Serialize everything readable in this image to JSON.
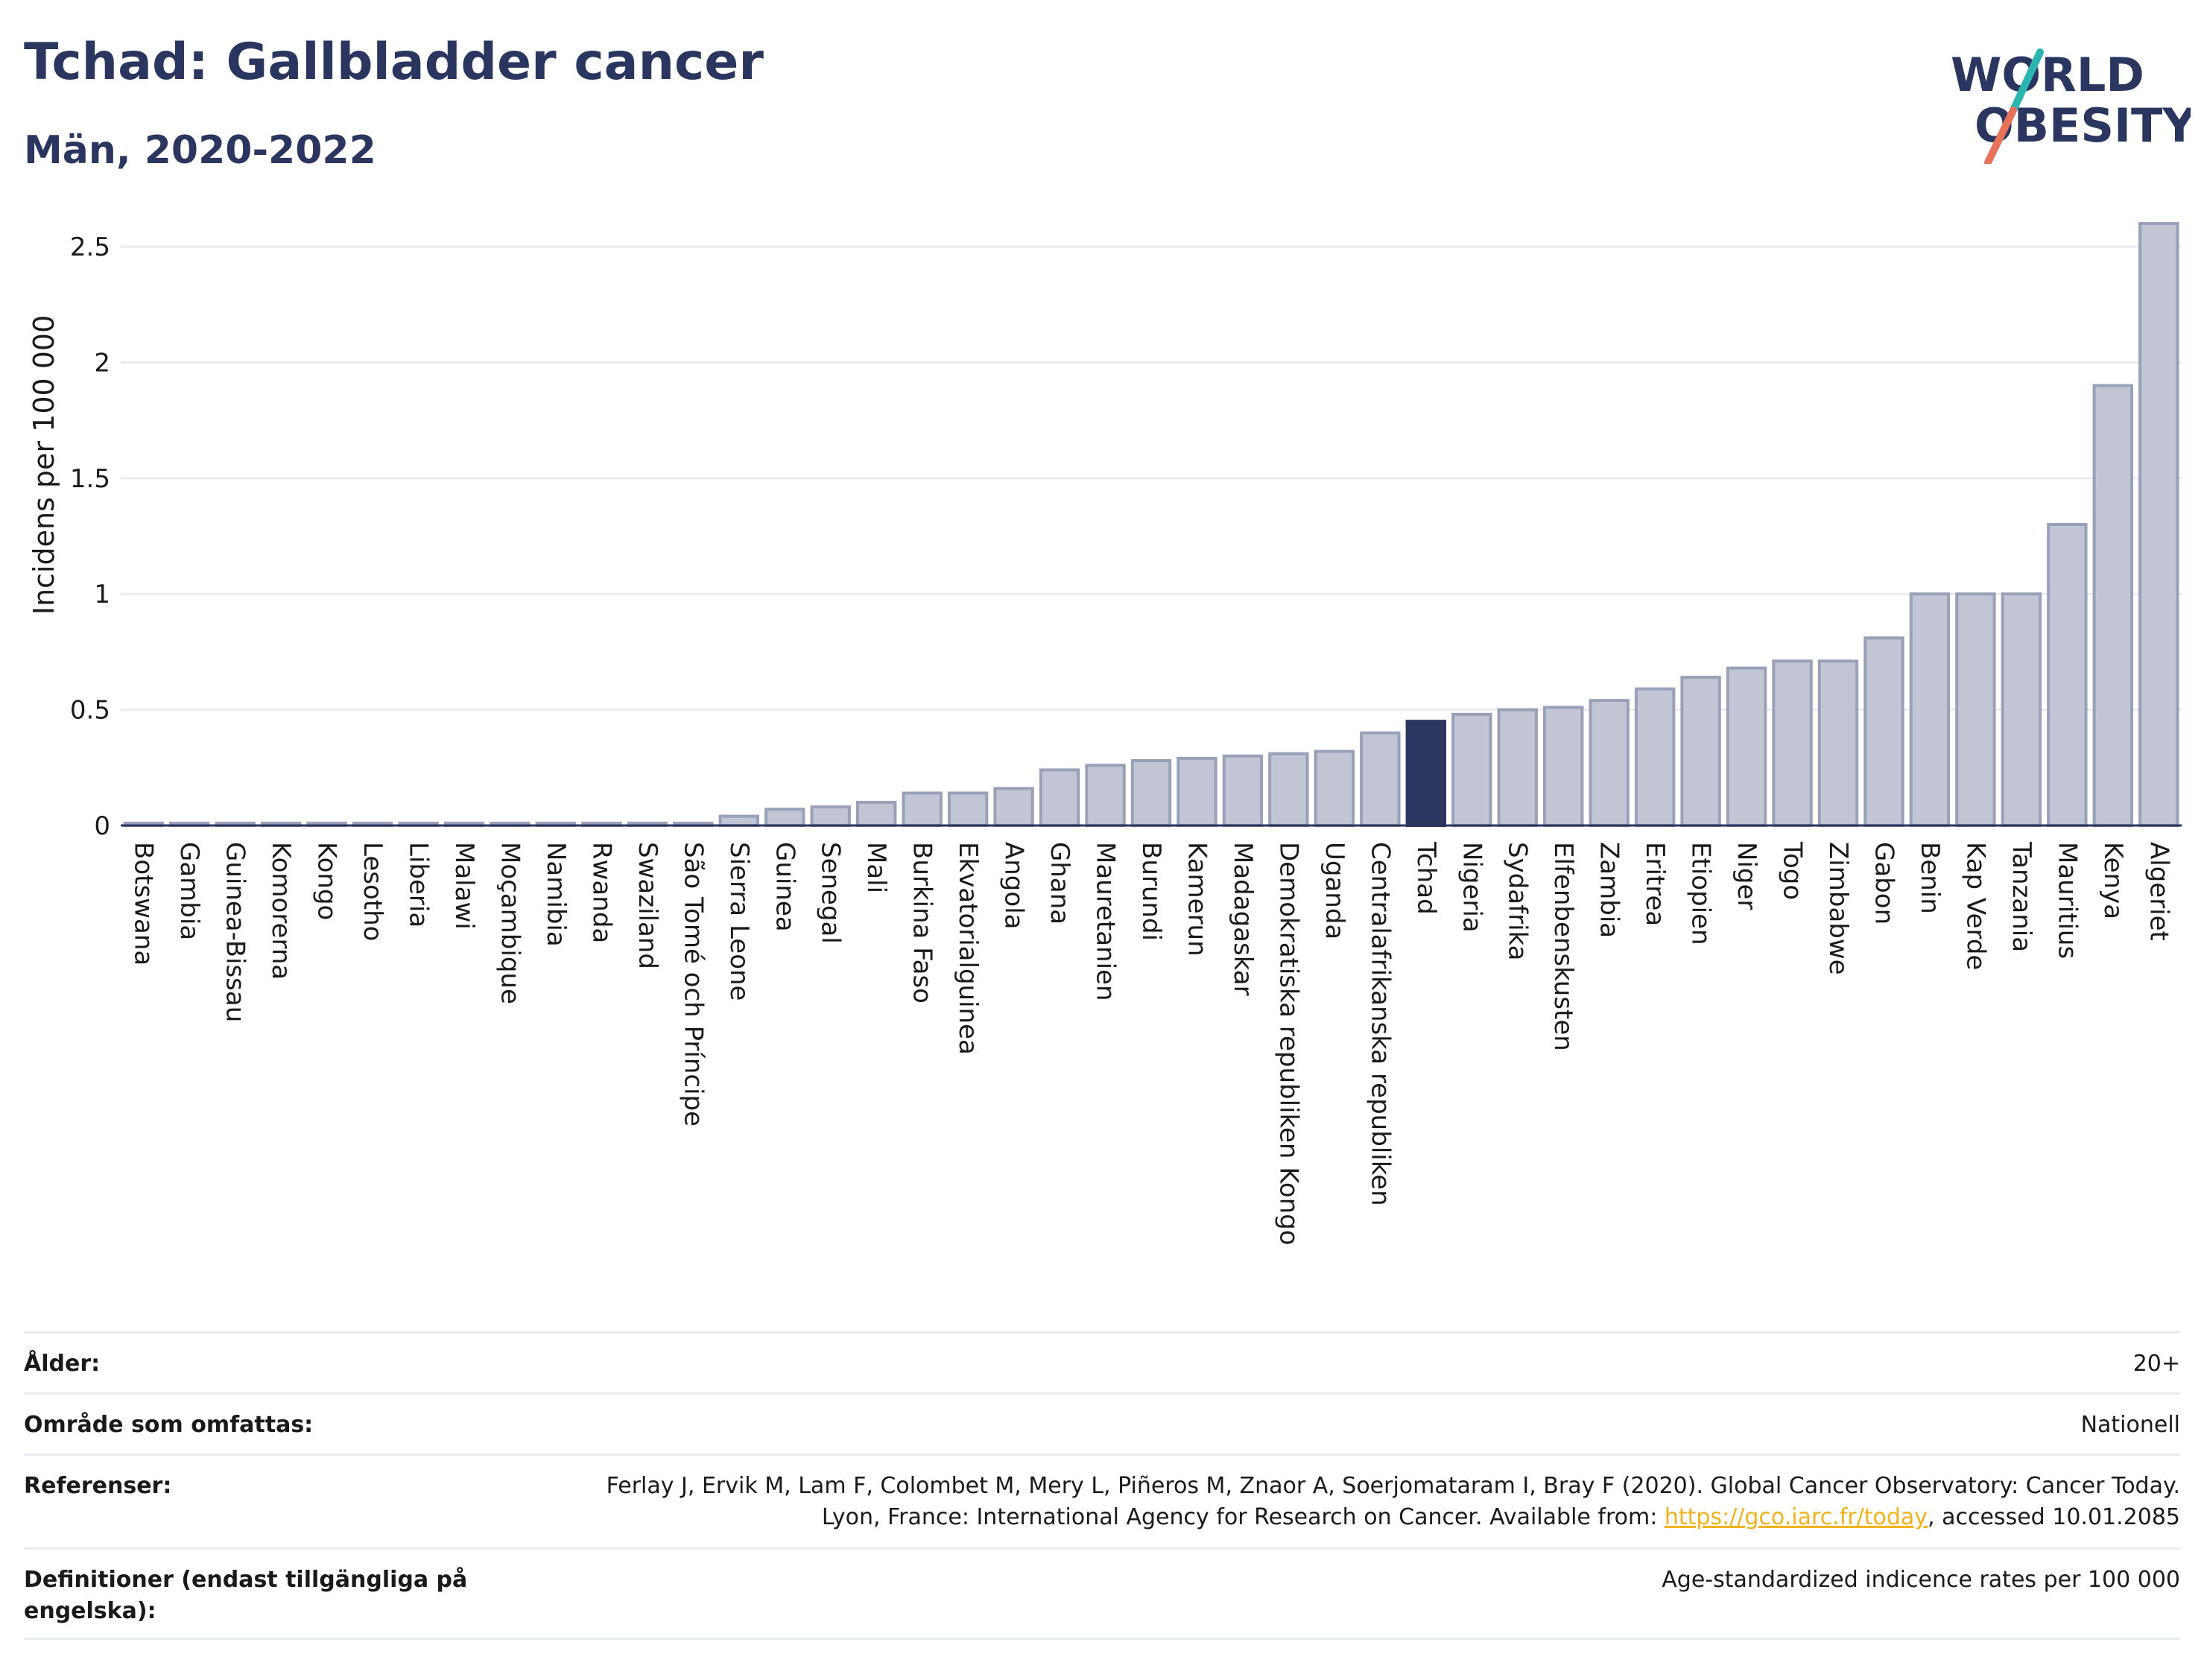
{
  "header": {
    "title": "Tchad: Gallbladder cancer",
    "subtitle": "Män, 2020-2022"
  },
  "logo": {
    "line1": "WORLD",
    "line2": "OBESITY",
    "colors": {
      "text": "#2a3560",
      "slash_top": "#2bb5b0",
      "slash_bottom": "#e8715a"
    }
  },
  "colors": {
    "bar": "#c1c5d4",
    "bar_stroke": "#9aa0b8",
    "highlight": "#2a3560",
    "grid": "#e9ebf2",
    "axis": "#2a3560",
    "link": "#f2b21b"
  },
  "chart_data": {
    "type": "bar",
    "ylabel": "Incidens per 100 000",
    "ylim": [
      0,
      2.6
    ],
    "yticks": [
      "0",
      "0.5",
      "1",
      "1.5",
      "2",
      "2.5"
    ],
    "ytick_values": [
      0,
      0.5,
      1,
      1.5,
      2,
      2.5
    ],
    "grid": true,
    "highlight": "Tchad",
    "categories": [
      "Botswana",
      "Gambia",
      "Guinea-Bissau",
      "Komorerna",
      "Kongo",
      "Lesotho",
      "Liberia",
      "Malawi",
      "Moçambique",
      "Namibia",
      "Rwanda",
      "Swaziland",
      "São Tomé och Príncipe",
      "Sierra Leone",
      "Guinea",
      "Senegal",
      "Mali",
      "Burkina Faso",
      "Ekvatorialguinea",
      "Angola",
      "Ghana",
      "Mauretanien",
      "Burundi",
      "Kamerun",
      "Madagaskar",
      "Demokratiska republiken Kongo",
      "Uganda",
      "Centralafrikanska republiken",
      "Tchad",
      "Nigeria",
      "Sydafrika",
      "Elfenbenskusten",
      "Zambia",
      "Eritrea",
      "Etiopien",
      "Niger",
      "Togo",
      "Zimbabwe",
      "Gabon",
      "Benin",
      "Kap Verde",
      "Tanzania",
      "Mauritius",
      "Kenya",
      "Algeriet"
    ],
    "values": [
      0.01,
      0.01,
      0.01,
      0.01,
      0.01,
      0.01,
      0.01,
      0.01,
      0.01,
      0.01,
      0.01,
      0.01,
      0.01,
      0.04,
      0.07,
      0.08,
      0.1,
      0.14,
      0.14,
      0.16,
      0.24,
      0.26,
      0.28,
      0.29,
      0.3,
      0.31,
      0.32,
      0.4,
      0.45,
      0.48,
      0.5,
      0.51,
      0.54,
      0.59,
      0.64,
      0.68,
      0.71,
      0.71,
      0.81,
      1.0,
      1.0,
      1.0,
      1.3,
      1.9,
      2.6
    ]
  },
  "metadata": [
    {
      "key": "Ålder:",
      "value": "20+"
    },
    {
      "key": "Område som omfattas:",
      "value": "Nationell"
    },
    {
      "key": "Referenser:",
      "value_before": "Ferlay J, Ervik M, Lam F, Colombet M, Mery L, Piñeros M, Znaor A, Soerjomataram I, Bray F (2020). Global Cancer Observatory: Cancer Today. Lyon, France: International Agency for Research on Cancer. Available from: ",
      "link": "https://gco.iarc.fr/today",
      "value_after": ", accessed 10.01.2085"
    },
    {
      "key": "Definitioner (endast tillgängliga på engelska):",
      "value": "Age-standardized indicence rates per 100 000"
    }
  ]
}
